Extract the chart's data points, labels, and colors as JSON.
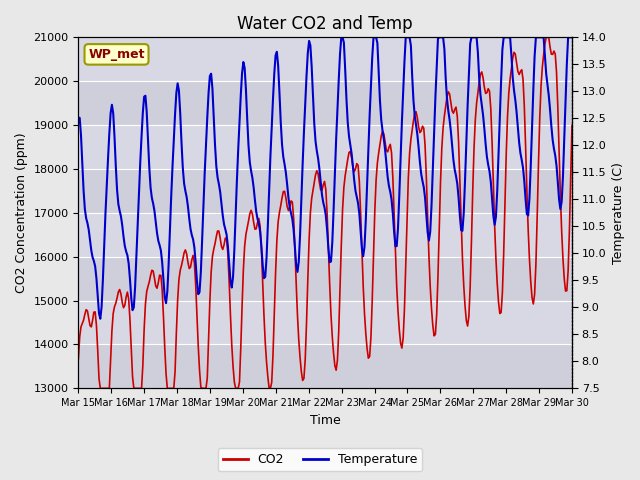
{
  "title": "Water CO2 and Temp",
  "xlabel": "Time",
  "ylabel_left": "CO2 Concentration (ppm)",
  "ylabel_right": "Temperature (C)",
  "annotation": "WP_met",
  "ylim_left": [
    13000,
    21000
  ],
  "ylim_right": [
    7.5,
    14.0
  ],
  "yticks_left": [
    13000,
    14000,
    15000,
    16000,
    17000,
    18000,
    19000,
    20000,
    21000
  ],
  "yticks_right": [
    7.5,
    8.0,
    8.5,
    9.0,
    9.5,
    10.0,
    10.5,
    11.0,
    11.5,
    12.0,
    12.5,
    13.0,
    13.5,
    14.0
  ],
  "co2_color": "#cc0000",
  "temp_color": "#0000cc",
  "bg_color": "#e8e8e8",
  "plot_bg_color": "#d8d8e0",
  "legend_co2": "CO2",
  "legend_temp": "Temperature",
  "title_fontsize": 12,
  "label_fontsize": 9,
  "x_tick_labels": [
    "Mar 15",
    "Mar 16",
    "Mar 17",
    "Mar 18",
    "Mar 19",
    "Mar 20",
    "Mar 21",
    "Mar 22",
    "Mar 23",
    "Mar 24",
    "Mar 25",
    "Mar 26",
    "Mar 27",
    "Mar 28",
    "Mar 29",
    "Mar 30"
  ],
  "n_points": 384
}
